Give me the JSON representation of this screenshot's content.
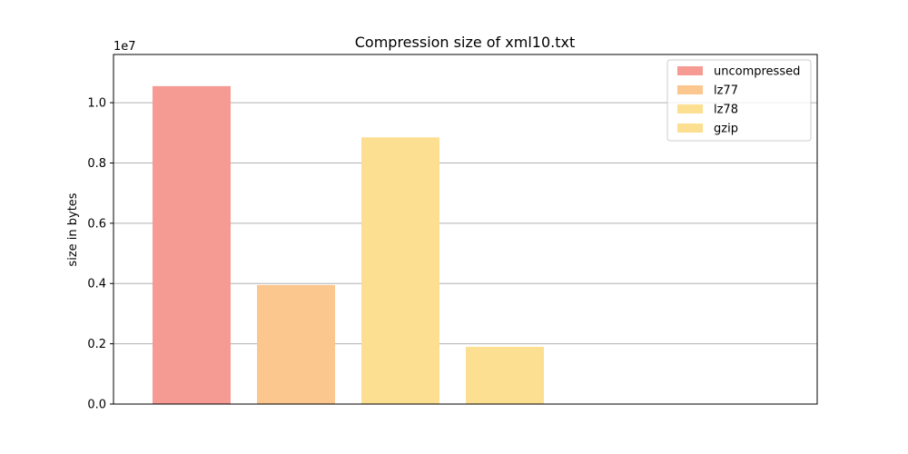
{
  "chart_data": {
    "type": "bar",
    "title": "Compression size of xml10.txt",
    "xlabel": "",
    "ylabel": "size in bytes",
    "scale_label": "1e7",
    "ylim": [
      0,
      11600000
    ],
    "yticks": [
      0,
      2000000,
      4000000,
      6000000,
      8000000,
      10000000
    ],
    "ytick_labels": [
      "0.0",
      "0.2",
      "0.4",
      "0.6",
      "0.8",
      "1.0"
    ],
    "grid": "y",
    "legend_position": "top-right",
    "series": [
      {
        "name": "uncompressed",
        "value": 10550000,
        "color": "#f69a94"
      },
      {
        "name": "lz77",
        "value": 3950000,
        "color": "#fcc68f"
      },
      {
        "name": "lz78",
        "value": 8850000,
        "color": "#fddf91"
      },
      {
        "name": "gzip",
        "value": 1900000,
        "color": "#fddf91"
      }
    ]
  }
}
